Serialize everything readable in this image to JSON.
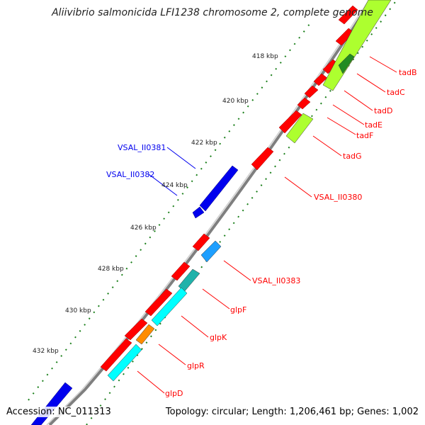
{
  "title": "Aliivibrio salmonicida LFI1238 chromosome 2, complete genome",
  "footer": {
    "accession": "Accession: NC_011313",
    "summary": "Topology: circular; Length: 1,206,461 bp; Genes: 1,002"
  },
  "ticks": [
    "418 kbp",
    "420 kbp",
    "422 kbp",
    "424 kbp",
    "426 kbp",
    "428 kbp",
    "430 kbp",
    "432 kbp"
  ],
  "gene_labels": {
    "tadB": "tadB",
    "tadC": "tadC",
    "tadD": "tadD",
    "tadE": "tadE",
    "tadF": "tadF",
    "tadG": "tadG",
    "VSAL_II0380": "VSAL_II0380",
    "VSAL_II0381": "VSAL_II0381",
    "VSAL_II0382": "VSAL_II0382",
    "VSAL_II0383": "VSAL_II0383",
    "glpF": "glpF",
    "glpK": "glpK",
    "glpR": "glpR",
    "glpD": "glpD"
  },
  "colors": {
    "forward_cds": "#ff0000",
    "reverse_cds": "#0000ee",
    "cog_lightgreen": "#adff2f",
    "cog_darkgreen": "#228b22",
    "cog_cyan": "#00ffff",
    "cog_teal": "#20b2aa",
    "cog_skyblue": "#1e9fff",
    "cog_orange": "#ff8c00",
    "backbone": "#7f7f7f"
  }
}
